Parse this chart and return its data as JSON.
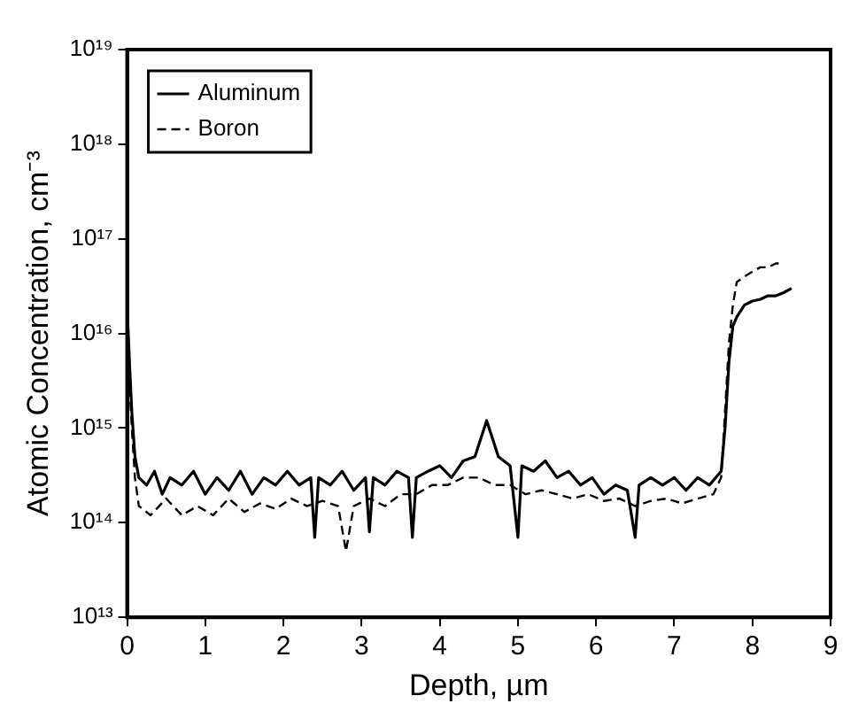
{
  "chart_data": {
    "type": "line",
    "xlabel": "Depth, µm",
    "ylabel": "Atomic Concentration, cm⁻³",
    "log": "y",
    "xlim": [
      0,
      9
    ],
    "xticks": [
      0,
      1,
      2,
      3,
      4,
      5,
      6,
      7,
      8,
      9
    ],
    "ylim": [
      10000000000000.0,
      1e+19
    ],
    "yticks": [
      {
        "value": 10000000000000.0,
        "label": "10¹³"
      },
      {
        "value": 100000000000000.0,
        "label": "10¹⁴"
      },
      {
        "value": 1000000000000000.0,
        "label": "10¹⁵"
      },
      {
        "value": 1e+16,
        "label": "10¹⁶"
      },
      {
        "value": 1e+17,
        "label": "10¹⁷"
      },
      {
        "value": 1e+18,
        "label": "10¹⁸"
      },
      {
        "value": 1e+19,
        "label": "10¹⁹"
      }
    ],
    "grid": false,
    "legend": "top left",
    "marker": "none",
    "series": [
      {
        "name": "Aluminum",
        "color": "#000000",
        "line_style": "solid",
        "x": [
          0,
          0.03,
          0.06,
          0.1,
          0.15,
          0.25,
          0.35,
          0.45,
          0.55,
          0.7,
          0.85,
          1.0,
          1.15,
          1.3,
          1.45,
          1.6,
          1.75,
          1.9,
          2.05,
          2.2,
          2.35,
          2.4,
          2.45,
          2.6,
          2.75,
          2.9,
          3.05,
          3.1,
          3.15,
          3.3,
          3.45,
          3.6,
          3.65,
          3.7,
          3.85,
          4.0,
          4.15,
          4.3,
          4.45,
          4.6,
          4.75,
          4.9,
          5.0,
          5.05,
          5.2,
          5.35,
          5.5,
          5.65,
          5.8,
          5.95,
          6.1,
          6.25,
          6.4,
          6.5,
          6.55,
          6.7,
          6.85,
          7.0,
          7.15,
          7.3,
          7.45,
          7.6,
          7.65,
          7.7,
          7.75,
          7.8,
          7.9,
          8.0,
          8.1,
          8.2,
          8.3,
          8.4,
          8.5
        ],
        "values": [
          2e+16,
          5000000000000000.0,
          1500000000000000.0,
          500000000000000.0,
          300000000000000.0,
          250000000000000.0,
          350000000000000.0,
          200000000000000.0,
          300000000000000.0,
          250000000000000.0,
          350000000000000.0,
          200000000000000.0,
          300000000000000.0,
          220000000000000.0,
          350000000000000.0,
          200000000000000.0,
          300000000000000.0,
          250000000000000.0,
          350000000000000.0,
          250000000000000.0,
          300000000000000.0,
          70000000000000.0,
          300000000000000.0,
          250000000000000.0,
          350000000000000.0,
          220000000000000.0,
          300000000000000.0,
          80000000000000.0,
          300000000000000.0,
          250000000000000.0,
          350000000000000.0,
          300000000000000.0,
          70000000000000.0,
          300000000000000.0,
          350000000000000.0,
          400000000000000.0,
          300000000000000.0,
          450000000000000.0,
          500000000000000.0,
          1200000000000000.0,
          500000000000000.0,
          400000000000000.0,
          70000000000000.0,
          400000000000000.0,
          350000000000000.0,
          450000000000000.0,
          300000000000000.0,
          350000000000000.0,
          250000000000000.0,
          300000000000000.0,
          200000000000000.0,
          250000000000000.0,
          220000000000000.0,
          70000000000000.0,
          250000000000000.0,
          300000000000000.0,
          250000000000000.0,
          300000000000000.0,
          220000000000000.0,
          300000000000000.0,
          250000000000000.0,
          350000000000000.0,
          1000000000000000.0,
          5000000000000000.0,
          1.2e+16,
          1.5e+16,
          2e+16,
          2.2e+16,
          2.3e+16,
          2.5e+16,
          2.5e+16,
          2.7e+16,
          3e+16
        ]
      },
      {
        "name": "Boron",
        "color": "#000000",
        "line_style": "dashed",
        "x": [
          0,
          0.03,
          0.06,
          0.1,
          0.15,
          0.3,
          0.5,
          0.7,
          0.9,
          1.1,
          1.3,
          1.5,
          1.7,
          1.9,
          2.1,
          2.3,
          2.5,
          2.7,
          2.8,
          2.9,
          3.1,
          3.3,
          3.5,
          3.7,
          3.9,
          4.1,
          4.3,
          4.5,
          4.7,
          4.9,
          5.1,
          5.3,
          5.5,
          5.7,
          5.9,
          6.1,
          6.3,
          6.5,
          6.7,
          6.9,
          7.1,
          7.3,
          7.5,
          7.6,
          7.65,
          7.7,
          7.75,
          7.8,
          7.9,
          8.0,
          8.1,
          8.2,
          8.3,
          8.4
        ],
        "values": [
          1.5e+16,
          3000000000000000.0,
          1000000000000000.0,
          300000000000000.0,
          150000000000000.0,
          120000000000000.0,
          180000000000000.0,
          120000000000000.0,
          150000000000000.0,
          120000000000000.0,
          180000000000000.0,
          130000000000000.0,
          160000000000000.0,
          140000000000000.0,
          180000000000000.0,
          150000000000000.0,
          170000000000000.0,
          150000000000000.0,
          50000000000000.0,
          150000000000000.0,
          180000000000000.0,
          150000000000000.0,
          200000000000000.0,
          200000000000000.0,
          250000000000000.0,
          250000000000000.0,
          300000000000000.0,
          300000000000000.0,
          250000000000000.0,
          250000000000000.0,
          200000000000000.0,
          220000000000000.0,
          200000000000000.0,
          180000000000000.0,
          200000000000000.0,
          170000000000000.0,
          180000000000000.0,
          150000000000000.0,
          170000000000000.0,
          180000000000000.0,
          160000000000000.0,
          180000000000000.0,
          200000000000000.0,
          300000000000000.0,
          1500000000000000.0,
          8000000000000000.0,
          2e+16,
          3.5e+16,
          4e+16,
          4.5e+16,
          5e+16,
          5e+16,
          5.5e+16,
          5.5e+16
        ]
      }
    ]
  }
}
